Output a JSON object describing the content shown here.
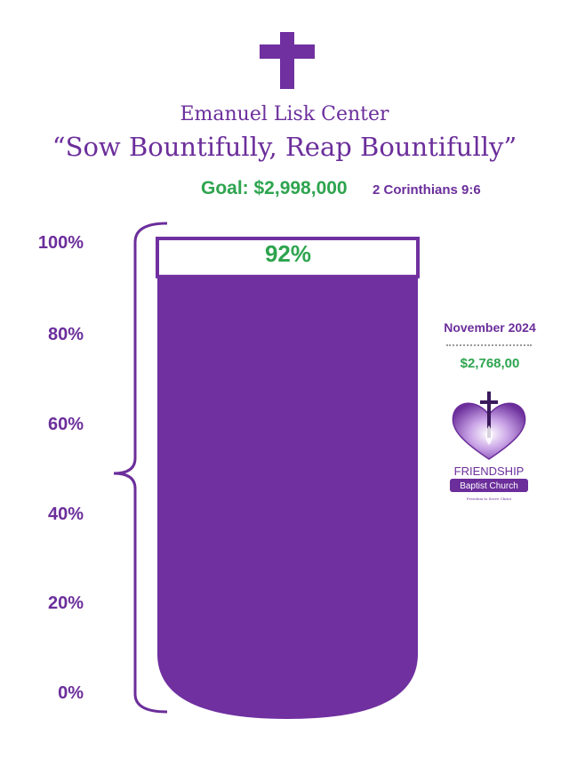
{
  "header": {
    "center_name": "Emanuel Lisk Center",
    "slogan": "“Sow Bountifully, Reap Bountifully”",
    "goal": "Goal: $2,998,000",
    "verse": "2 Corinthians 9:6"
  },
  "sidebar": {
    "month": "November 2024",
    "raised": "$2,768,00",
    "logo": {
      "name": "friendship-baptist-church-logo",
      "line1": "FRIENDSHIP",
      "line2": "Baptist Church",
      "tagline": "Freedom to Serve Christ"
    }
  },
  "colors": {
    "purple": "#6b2e9b",
    "bar_fill": "#7030a0",
    "green": "#2ea44f"
  },
  "chart_data": {
    "type": "bar",
    "title": "“Sow Bountifully, Reap Bountifully”",
    "ylim": [
      0,
      100
    ],
    "ticks": [
      "0%",
      "20%",
      "40%",
      "60%",
      "80%",
      "100%"
    ],
    "values": [
      92
    ],
    "value_label": "92%",
    "grid": false,
    "legend": "none"
  }
}
